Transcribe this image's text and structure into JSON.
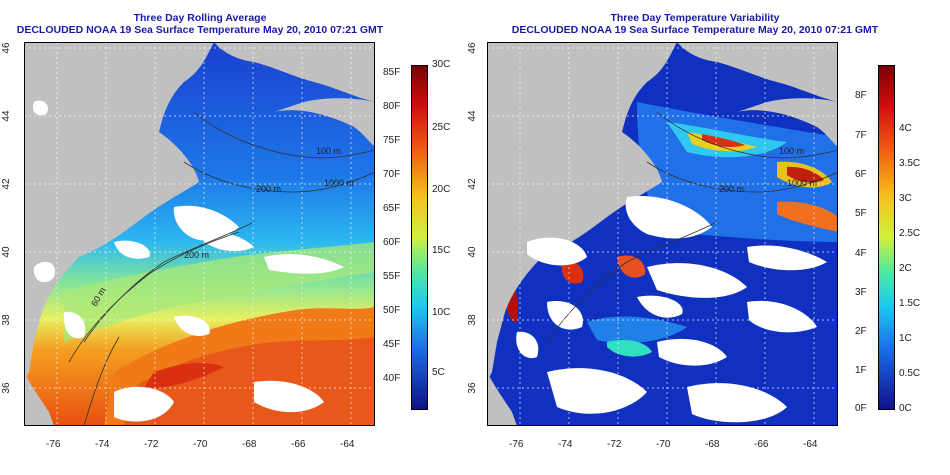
{
  "panels": [
    {
      "title": "Three Day Rolling Average",
      "subtitle": "DECLOUDED NOAA 19 Sea Surface Temperature May 20, 2010 07:21 GMT",
      "lon_ticks": [
        "-76",
        "-74",
        "-72",
        "-70",
        "-68",
        "-66",
        "-64"
      ],
      "lat_ticks": [
        "46",
        "44",
        "42",
        "40",
        "38",
        "36"
      ],
      "contour_labels": [
        "100 m",
        "200 m",
        "1000 m",
        "200 m",
        "60 m"
      ],
      "colorbar": {
        "f_labels": [
          "85F",
          "80F",
          "75F",
          "70F",
          "65F",
          "60F",
          "55F",
          "50F",
          "45F",
          "40F"
        ],
        "c_labels": [
          "30C",
          "25C",
          "20C",
          "15C",
          "10C",
          "5C"
        ]
      }
    },
    {
      "title": "Three Day Temperature Variability",
      "subtitle": "DECLOUDED NOAA 19 Sea Surface Temperature May 20, 2010 07:21 GMT",
      "lon_ticks": [
        "-76",
        "-74",
        "-72",
        "-70",
        "-68",
        "-66",
        "-64"
      ],
      "lat_ticks": [
        "46",
        "44",
        "42",
        "40",
        "38",
        "36"
      ],
      "contour_labels": [
        "100 m",
        "200 m",
        "1000 m"
      ],
      "colorbar": {
        "f_labels": [
          "8F",
          "7F",
          "6F",
          "5F",
          "4F",
          "3F",
          "2F",
          "1F",
          "0F"
        ],
        "c_labels": [
          "4C",
          "3.5C",
          "3C",
          "2.5C",
          "2C",
          "1.5C",
          "1C",
          "0.5C",
          "0C"
        ]
      }
    }
  ],
  "colors": {
    "land": "#c0c0c0",
    "cloud": "#ffffff",
    "title": "#1a1aa6"
  }
}
